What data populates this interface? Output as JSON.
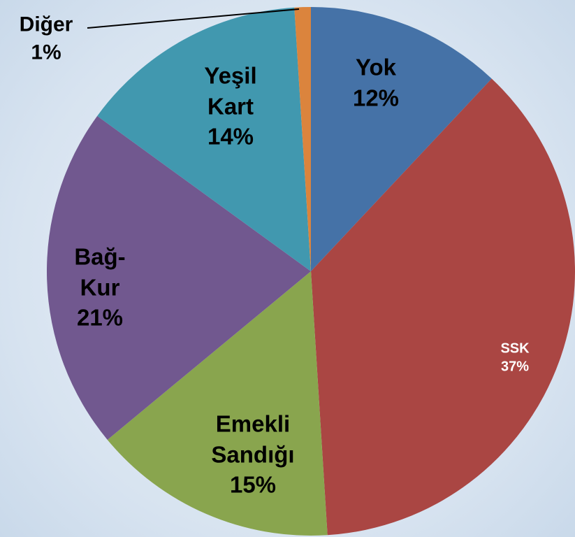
{
  "chart_data": {
    "type": "pie",
    "categories": [
      "Yok",
      "SSK",
      "Emekli Sandığı",
      "Bağ-Kur",
      "Yeşil Kart",
      "Diğer"
    ],
    "values": [
      12,
      37,
      15,
      21,
      14,
      1
    ],
    "value_labels": [
      "12%",
      "37%",
      "15%",
      "21%",
      "14%",
      "1%"
    ],
    "colors": [
      "#4572a7",
      "#aa4643",
      "#89a54e",
      "#71588f",
      "#4198af",
      "#db843d"
    ]
  }
}
